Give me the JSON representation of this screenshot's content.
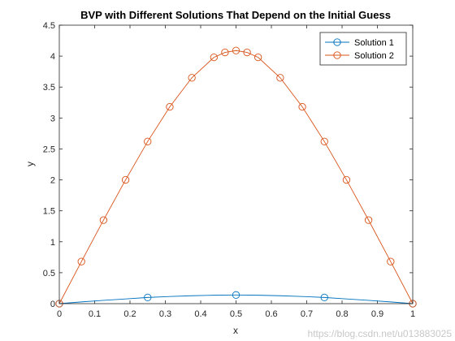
{
  "chart_data": {
    "type": "line",
    "title": "BVP with Different Solutions That Depend on the Initial Guess",
    "xlabel": "x",
    "ylabel": "y",
    "xlim": [
      0,
      1
    ],
    "ylim": [
      0,
      4.5
    ],
    "xticks": [
      "0",
      "0.1",
      "0.2",
      "0.3",
      "0.4",
      "0.5",
      "0.6",
      "0.7",
      "0.8",
      "0.9",
      "1"
    ],
    "yticks": [
      "0",
      "0.5",
      "1",
      "1.5",
      "2",
      "2.5",
      "3",
      "3.5",
      "4",
      "4.5"
    ],
    "grid": false,
    "legend_position": "top-right",
    "series": [
      {
        "name": "Solution 1",
        "color": "#0072BD",
        "marker": "circle",
        "x": [
          0,
          0.25,
          0.5,
          0.75,
          1
        ],
        "y": [
          0,
          0.1,
          0.14,
          0.1,
          0
        ],
        "line_x": [
          0,
          0.0625,
          0.125,
          0.1875,
          0.25,
          0.3125,
          0.375,
          0.4375,
          0.5,
          0.5625,
          0.625,
          0.6875,
          0.75,
          0.8125,
          0.875,
          0.9375,
          1
        ],
        "line_y": [
          0,
          0.028,
          0.053,
          0.076,
          0.1,
          0.116,
          0.128,
          0.136,
          0.14,
          0.136,
          0.128,
          0.116,
          0.1,
          0.076,
          0.053,
          0.028,
          0
        ]
      },
      {
        "name": "Solution 2",
        "color": "#D95319",
        "marker": "circle",
        "x": [
          0,
          0.0625,
          0.125,
          0.1875,
          0.25,
          0.3125,
          0.375,
          0.4375,
          0.46875,
          0.5,
          0.53125,
          0.5625,
          0.625,
          0.6875,
          0.75,
          0.8125,
          0.875,
          0.9375,
          1
        ],
        "y": [
          0,
          0.68,
          1.35,
          2.0,
          2.62,
          3.18,
          3.65,
          3.98,
          4.06,
          4.09,
          4.06,
          3.98,
          3.65,
          3.18,
          2.62,
          2.0,
          1.35,
          0.68,
          0
        ]
      }
    ]
  },
  "watermark": "https://blog.csdn.net/u013883025"
}
